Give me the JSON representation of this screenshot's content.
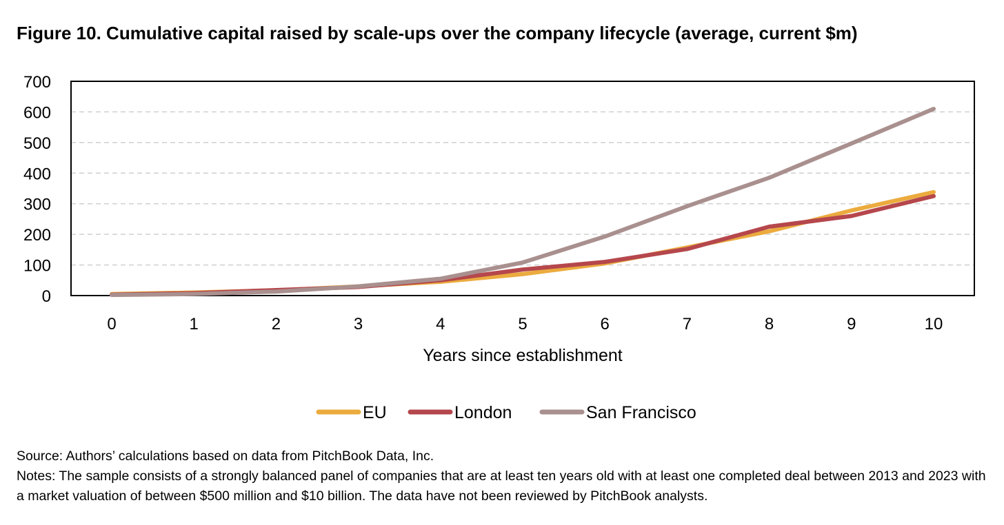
{
  "figure": {
    "title": "Figure 10. Cumulative capital raised by scale-ups over the company lifecycle (average, current $m)",
    "source": "Source: Authors’ calculations based on data from PitchBook Data, Inc.",
    "notes": "Notes: The sample consists of a strongly balanced panel of companies that are at least ten years old with at least one completed deal between 2013 and 2023 with a market valuation of between $500 million and $10 billion. The data have not been reviewed by PitchBook analysts."
  },
  "chart_data": {
    "type": "line",
    "title": "Figure 10. Cumulative capital raised by scale-ups over the company lifecycle (average, current $m)",
    "xlabel": "Years since establishment",
    "ylabel": "",
    "x": [
      0,
      1,
      2,
      3,
      4,
      5,
      6,
      7,
      8,
      9,
      10
    ],
    "x_tick_labels": [
      "0",
      "1",
      "2",
      "3",
      "4",
      "5",
      "6",
      "7",
      "8",
      "9",
      "10"
    ],
    "ylim": [
      0,
      700
    ],
    "y_ticks": [
      0,
      100,
      200,
      300,
      400,
      500,
      600,
      700
    ],
    "grid": "horizontal dashed",
    "legend_position": "bottom",
    "series": [
      {
        "name": "EU",
        "color": "#EBAB3E",
        "values": [
          5,
          10,
          17,
          30,
          45,
          70,
          105,
          157,
          210,
          278,
          338
        ]
      },
      {
        "name": "London",
        "color": "#B5474C",
        "values": [
          3,
          8,
          18,
          28,
          50,
          85,
          110,
          152,
          225,
          260,
          325
        ]
      },
      {
        "name": "San Francisco",
        "color": "#A9908F",
        "values": [
          2,
          5,
          13,
          30,
          55,
          108,
          193,
          292,
          385,
          497,
          610
        ]
      }
    ]
  }
}
